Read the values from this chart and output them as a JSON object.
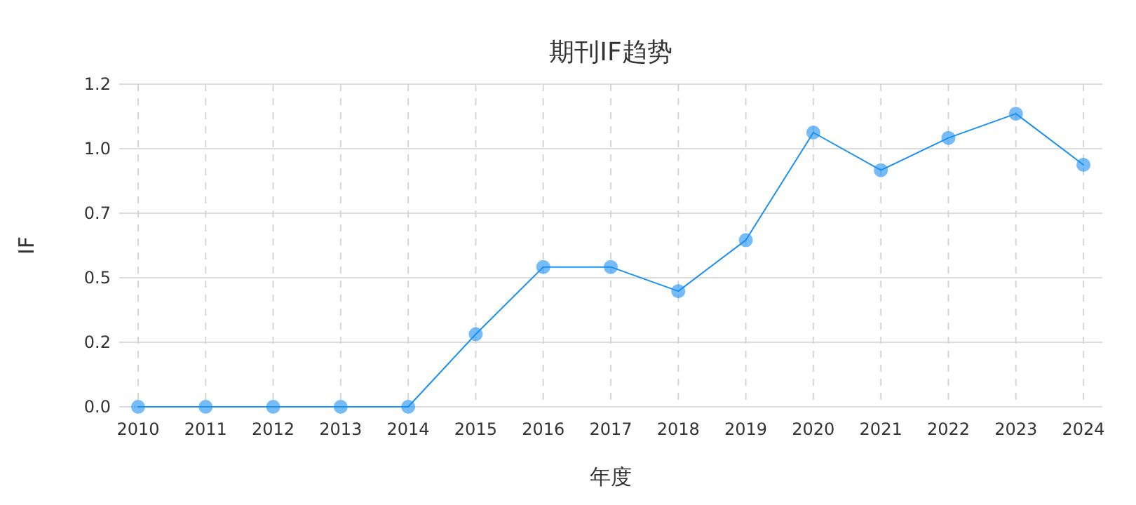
{
  "chart_data": {
    "type": "line",
    "title": "期刊IF趋势",
    "xlabel": "年度",
    "ylabel": "IF",
    "categories": [
      "2010",
      "2011",
      "2012",
      "2013",
      "2014",
      "2015",
      "2016",
      "2017",
      "2018",
      "2019",
      "2020",
      "2021",
      "2022",
      "2023",
      "2024"
    ],
    "series": [
      {
        "color": "#1a90f5",
        "values": [
          0,
          0,
          0,
          0,
          0,
          0.27,
          0.52,
          0.52,
          0.43,
          0.62,
          1.02,
          0.88,
          1.0,
          1.09,
          0.9
        ]
      }
    ],
    "ylim": [
      0,
      1.2
    ],
    "yticks": [
      {
        "value": 0,
        "label": "0.0"
      },
      {
        "value": 0.24,
        "label": "0.2"
      },
      {
        "value": 0.48,
        "label": "0.5"
      },
      {
        "value": 0.72,
        "label": "0.7"
      },
      {
        "value": 0.96,
        "label": "1.0"
      },
      1.2
    ],
    "grid": true,
    "marker": "circle",
    "line_style": "solid"
  }
}
